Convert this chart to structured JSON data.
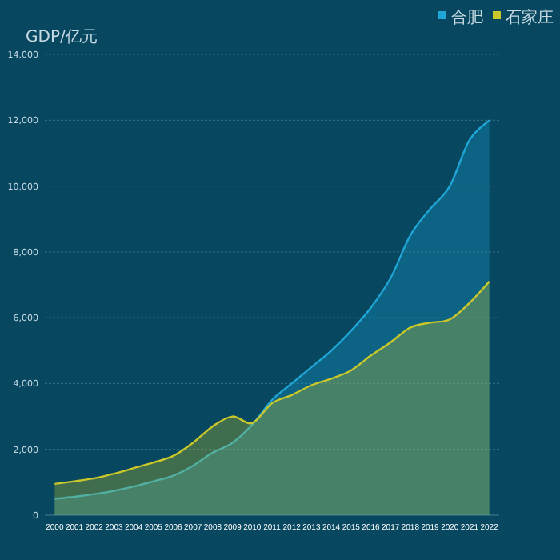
{
  "chart_data": {
    "type": "area",
    "ylabel": "GDP/亿元",
    "categories": [
      "2000",
      "2001",
      "2002",
      "2003",
      "2004",
      "2005",
      "2006",
      "2007",
      "2008",
      "2009",
      "2010",
      "2011",
      "2012",
      "2013",
      "2014",
      "2015",
      "2016",
      "2017",
      "2018",
      "2019",
      "2020",
      "2021",
      "2022"
    ],
    "series": [
      {
        "name": "合肥",
        "color": "#1fa6d6",
        "values": [
          500,
          560,
          640,
          740,
          870,
          1030,
          1200,
          1500,
          1900,
          2200,
          2750,
          3500,
          4000,
          4500,
          5000,
          5600,
          6300,
          7200,
          8500,
          9300,
          10000,
          11400,
          12000
        ]
      },
      {
        "name": "石家庄",
        "color": "#c9c72a",
        "values": [
          950,
          1030,
          1120,
          1260,
          1430,
          1600,
          1800,
          2200,
          2700,
          3000,
          2800,
          3400,
          3650,
          3950,
          4150,
          4400,
          4850,
          5250,
          5700,
          5850,
          5950,
          6450,
          7100
        ]
      }
    ],
    "ylim": [
      0,
      14000
    ],
    "yticks": [
      {
        "value": 0,
        "label": "0"
      },
      {
        "value": 2000,
        "label": "2,000"
      },
      {
        "value": 4000,
        "label": "4,000"
      },
      {
        "value": 6000,
        "label": "6,000"
      },
      {
        "value": 8000,
        "label": "8,000"
      },
      {
        "value": 10000,
        "label": "10,000"
      },
      {
        "value": 12000,
        "label": "12,000"
      },
      {
        "value": 14000,
        "label": "14,000"
      }
    ],
    "grid": "y",
    "legend": "top right"
  }
}
